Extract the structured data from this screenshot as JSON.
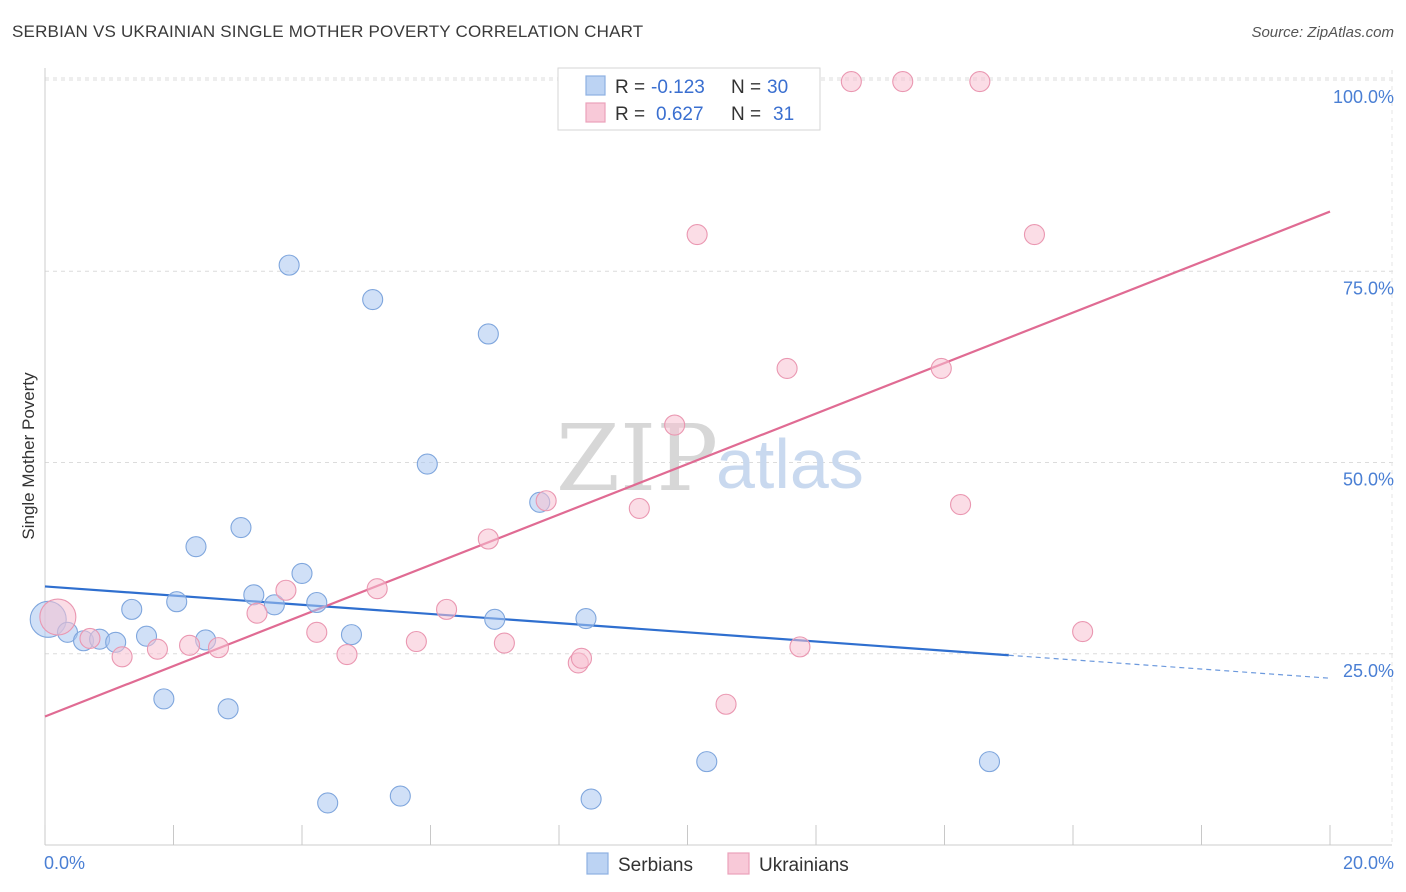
{
  "chart_data": {
    "type": "scatter",
    "title": "SERBIAN VS UKRAINIAN SINGLE MOTHER POVERTY CORRELATION CHART",
    "source": "Source: ZipAtlas.com",
    "xlabel": "",
    "ylabel": "Single Mother Poverty",
    "xlim": [
      0,
      20
    ],
    "ylim": [
      0,
      100
    ],
    "x_tick_labels": [
      "0.0%",
      "20.0%"
    ],
    "y_ticks": [
      25,
      50,
      75,
      100
    ],
    "y_tick_labels": [
      "25.0%",
      "50.0%",
      "75.0%",
      "100.0%"
    ],
    "grid": true,
    "watermark": {
      "zip": "ZIP",
      "atlas": "atlas"
    },
    "legend": {
      "placement": "top-center",
      "rows": [
        {
          "r_label": "R =",
          "r_value": "-0.123",
          "n_label": "N =",
          "n_value": "30"
        },
        {
          "r_label": "R =",
          "r_value": "0.627",
          "n_label": "N =",
          "n_value": "31"
        }
      ]
    },
    "series": [
      {
        "name": "Serbians",
        "color": "#a9c6f0",
        "stroke": "#7fa6dd",
        "line_color": "#2f6fcf",
        "r": -0.123,
        "n": 30,
        "trend": {
          "x0": 0,
          "y0": 33.8,
          "x1": 15.0,
          "y1": 24.8,
          "dash_x1": 20.0,
          "dash_y1": 21.8
        },
        "points": [
          [
            0.05,
            29.5,
            18
          ],
          [
            0.35,
            27.8,
            10
          ],
          [
            0.6,
            26.7,
            10
          ],
          [
            0.85,
            26.9,
            10
          ],
          [
            1.1,
            26.5,
            10
          ],
          [
            1.35,
            30.8,
            10
          ],
          [
            1.58,
            27.3,
            10
          ],
          [
            1.85,
            19.1,
            10
          ],
          [
            2.05,
            31.8,
            10
          ],
          [
            2.35,
            39.0,
            10
          ],
          [
            2.5,
            26.8,
            10
          ],
          [
            2.85,
            17.8,
            10
          ],
          [
            3.05,
            41.5,
            10
          ],
          [
            3.25,
            32.7,
            10
          ],
          [
            3.57,
            31.4,
            10
          ],
          [
            3.8,
            75.8,
            10
          ],
          [
            4.0,
            35.5,
            10
          ],
          [
            4.23,
            31.7,
            10
          ],
          [
            4.4,
            5.5,
            10
          ],
          [
            4.77,
            27.5,
            10
          ],
          [
            5.1,
            71.3,
            10
          ],
          [
            5.53,
            6.4,
            10
          ],
          [
            5.95,
            49.8,
            10
          ],
          [
            6.9,
            66.8,
            10
          ],
          [
            7.0,
            29.5,
            10
          ],
          [
            7.7,
            44.8,
            10
          ],
          [
            8.42,
            29.6,
            10
          ],
          [
            8.5,
            6.0,
            10
          ],
          [
            10.3,
            10.9,
            10
          ],
          [
            14.7,
            10.9,
            10
          ]
        ]
      },
      {
        "name": "Ukrainians",
        "color": "#f7c1d2",
        "stroke": "#ea97b1",
        "line_color": "#e06b93",
        "r": 0.627,
        "n": 31,
        "trend": {
          "x0": 0,
          "y0": 16.8,
          "x1": 20.0,
          "y1": 82.8
        },
        "points": [
          [
            0.2,
            29.8,
            18
          ],
          [
            0.7,
            27.0,
            10
          ],
          [
            1.2,
            24.6,
            10
          ],
          [
            1.75,
            25.6,
            10
          ],
          [
            2.25,
            26.1,
            10
          ],
          [
            2.7,
            25.8,
            10
          ],
          [
            3.3,
            30.3,
            10
          ],
          [
            3.75,
            33.3,
            10
          ],
          [
            4.23,
            27.8,
            10
          ],
          [
            4.7,
            24.9,
            10
          ],
          [
            5.17,
            33.5,
            10
          ],
          [
            5.78,
            26.6,
            10
          ],
          [
            6.25,
            30.8,
            10
          ],
          [
            6.9,
            40.0,
            10
          ],
          [
            7.15,
            26.4,
            10
          ],
          [
            7.8,
            45.0,
            10
          ],
          [
            8.3,
            23.8,
            10
          ],
          [
            8.35,
            24.4,
            10
          ],
          [
            9.25,
            44.0,
            10
          ],
          [
            9.8,
            54.9,
            10
          ],
          [
            10.15,
            79.8,
            10
          ],
          [
            10.6,
            18.4,
            10
          ],
          [
            11.55,
            62.3,
            10
          ],
          [
            11.75,
            25.9,
            10
          ],
          [
            12.55,
            99.8,
            10
          ],
          [
            13.35,
            99.8,
            10
          ],
          [
            13.95,
            62.3,
            10
          ],
          [
            14.25,
            44.5,
            10
          ],
          [
            14.55,
            99.8,
            10
          ],
          [
            15.4,
            79.8,
            10
          ],
          [
            16.15,
            27.9,
            10
          ]
        ]
      }
    ]
  }
}
